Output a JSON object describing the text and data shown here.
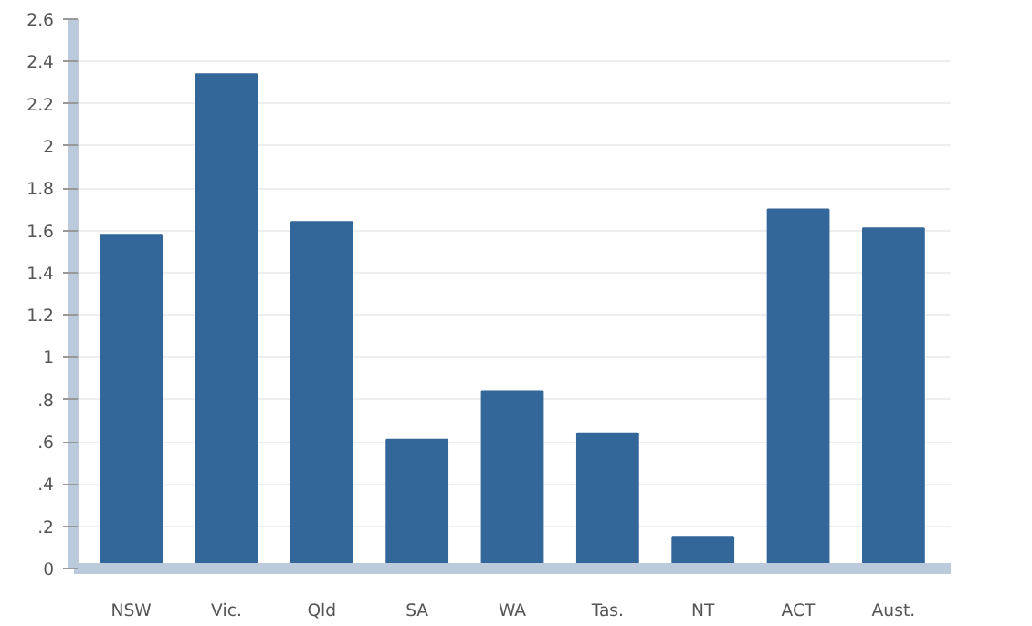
{
  "chart_data": {
    "type": "bar",
    "categories": [
      "NSW",
      "Vic.",
      "Qld",
      "SA",
      "WA",
      "Tas.",
      "NT",
      "ACT",
      "Aust."
    ],
    "values": [
      1.58,
      2.34,
      1.64,
      0.61,
      0.84,
      0.64,
      0.15,
      1.7,
      1.61
    ],
    "color": "#336699",
    "ylim": [
      0,
      2.6
    ],
    "yticks": [
      0,
      {
        "value": 0.2,
        "label": ".2"
      },
      {
        "value": 0.4,
        "label": ".4"
      },
      {
        "value": 0.6,
        "label": ".6"
      },
      {
        "value": 0.8,
        "label": ".8"
      },
      1,
      1.2,
      1.4,
      1.6,
      1.8,
      2,
      2.2,
      2.4,
      2.6
    ],
    "grid": "y"
  }
}
